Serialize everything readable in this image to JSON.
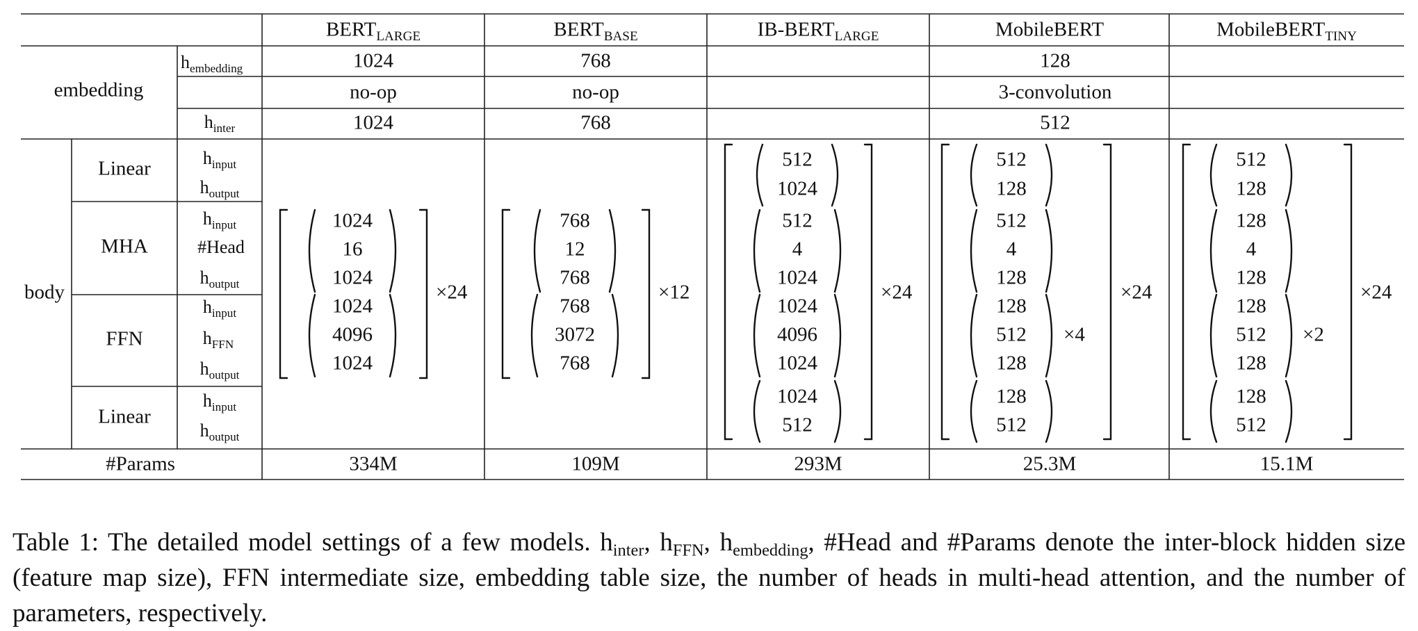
{
  "columns": [
    {
      "base": "BERT",
      "sub": "LARGE"
    },
    {
      "base": "BERT",
      "sub": "BASE"
    },
    {
      "base": "IB-BERT",
      "sub": "LARGE"
    },
    {
      "base": "MobileBERT",
      "sub": ""
    },
    {
      "base": "MobileBERT",
      "sub": "TINY"
    }
  ],
  "row_groups": {
    "embedding": "embedding",
    "body": "body",
    "params": "#Params",
    "linear_top": "Linear",
    "mha": "MHA",
    "ffn": "FFN",
    "linear_bottom": "Linear"
  },
  "row_labels": {
    "embedding_h": {
      "base": "h",
      "sub": "embedding"
    },
    "embedding_inter": {
      "base": "h",
      "sub": "inter"
    },
    "input": {
      "base": "h",
      "sub": "input"
    },
    "output": {
      "base": "h",
      "sub": "output"
    },
    "head": "#Head",
    "ffn": {
      "base": "h",
      "sub": "FFN"
    }
  },
  "embedding_rows": {
    "h_embedding": [
      "1024",
      "768",
      "128"
    ],
    "op": [
      "no-op",
      "no-op",
      "3-convolution"
    ],
    "h_inter": [
      "1024",
      "768",
      "512"
    ]
  },
  "body": {
    "bert_large": {
      "mha": [
        "1024",
        "16",
        "1024"
      ],
      "ffn": [
        "1024",
        "4096",
        "1024"
      ],
      "repeat": "×24"
    },
    "bert_base": {
      "mha": [
        "768",
        "12",
        "768"
      ],
      "ffn": [
        "768",
        "3072",
        "768"
      ],
      "repeat": "×12"
    },
    "ib_bert_large": {
      "linear_top": [
        "512",
        "1024"
      ],
      "mha": [
        "512",
        "4",
        "1024"
      ],
      "ffn": [
        "1024",
        "4096",
        "1024"
      ],
      "linear_bottom": [
        "1024",
        "512"
      ],
      "repeat": "×24"
    },
    "mobilebert": {
      "linear_top": [
        "512",
        "128"
      ],
      "mha": [
        "512",
        "4",
        "128"
      ],
      "ffn": [
        "128",
        "512",
        "128"
      ],
      "ffn_repeat": "×4",
      "linear_bottom": [
        "128",
        "512"
      ],
      "repeat": "×24"
    },
    "mobilebert_tiny": {
      "linear_top": [
        "512",
        "128"
      ],
      "mha": [
        "128",
        "4",
        "128"
      ],
      "ffn": [
        "128",
        "512",
        "128"
      ],
      "ffn_repeat": "×2",
      "linear_bottom": [
        "128",
        "512"
      ],
      "repeat": "×24"
    }
  },
  "params": [
    "334M",
    "109M",
    "293M",
    "25.3M",
    "15.1M"
  ],
  "caption": {
    "p1": "Table 1:  The detailed model settings of a few models.  h",
    "s1": "inter",
    "p2": ", h",
    "s2": "FFN",
    "p3": ", h",
    "s3": "embedding",
    "p4": ", #Head and #Params denote the inter-block hidden size (feature map size), FFN intermediate size, embedding table size, the number of heads in multi-head attention, and the number of parameters, respectively."
  }
}
